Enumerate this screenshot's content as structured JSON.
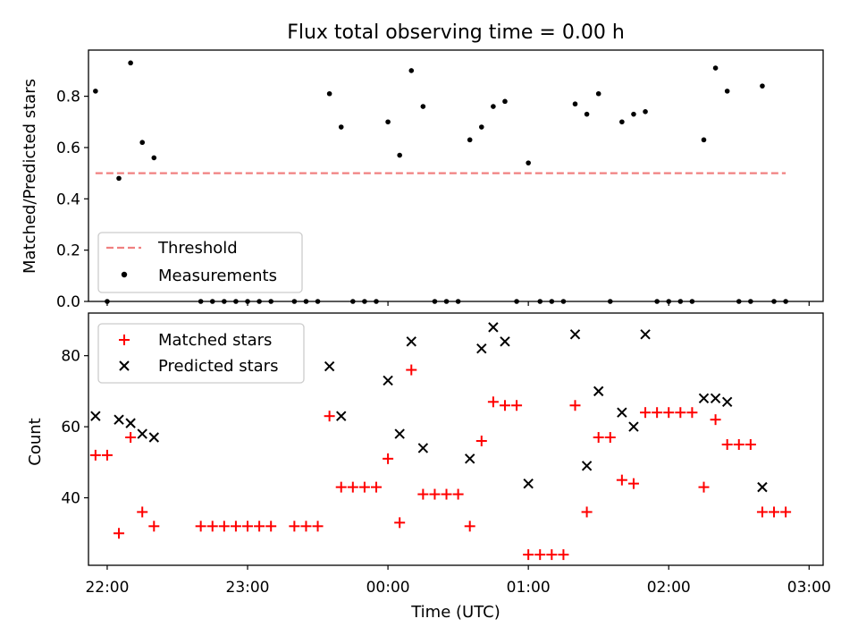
{
  "chart_data": [
    {
      "type": "scatter",
      "title": "Flux total observing time = 0.00 h",
      "xlabel": "",
      "ylabel": "Matched/Predicted stars",
      "xlim": [
        "21:52",
        "03:06"
      ],
      "ylim": [
        0,
        0.98
      ],
      "yticks": [
        "0.0",
        "0.2",
        "0.4",
        "0.6",
        "0.8"
      ],
      "legend_position": "lower-left",
      "threshold": {
        "name": "Threshold",
        "value": 0.5,
        "x_start": "21:55",
        "x_end": "02:50",
        "color": "#f08080",
        "style": "dashed"
      },
      "series": [
        {
          "name": "Measurements",
          "color": "#000000",
          "marker": "dot",
          "points": [
            [
              "21:55",
              0.82
            ],
            [
              "22:00",
              0.0
            ],
            [
              "22:05",
              0.48
            ],
            [
              "22:10",
              0.93
            ],
            [
              "22:15",
              0.62
            ],
            [
              "22:20",
              0.56
            ],
            [
              "22:40",
              0.0
            ],
            [
              "22:45",
              0.0
            ],
            [
              "22:50",
              0.0
            ],
            [
              "22:55",
              0.0
            ],
            [
              "23:00",
              0.0
            ],
            [
              "23:05",
              0.0
            ],
            [
              "23:10",
              0.0
            ],
            [
              "23:20",
              0.0
            ],
            [
              "23:25",
              0.0
            ],
            [
              "23:30",
              0.0
            ],
            [
              "23:35",
              0.81
            ],
            [
              "23:40",
              0.68
            ],
            [
              "23:45",
              0.0
            ],
            [
              "23:50",
              0.0
            ],
            [
              "23:55",
              0.0
            ],
            [
              "00:00",
              0.7
            ],
            [
              "00:05",
              0.57
            ],
            [
              "00:10",
              0.9
            ],
            [
              "00:15",
              0.76
            ],
            [
              "00:20",
              0.0
            ],
            [
              "00:25",
              0.0
            ],
            [
              "00:30",
              0.0
            ],
            [
              "00:35",
              0.63
            ],
            [
              "00:40",
              0.68
            ],
            [
              "00:45",
              0.76
            ],
            [
              "00:50",
              0.78
            ],
            [
              "00:55",
              0.0
            ],
            [
              "01:00",
              0.54
            ],
            [
              "01:05",
              0.0
            ],
            [
              "01:10",
              0.0
            ],
            [
              "01:15",
              0.0
            ],
            [
              "01:20",
              0.77
            ],
            [
              "01:25",
              0.73
            ],
            [
              "01:30",
              0.81
            ],
            [
              "01:35",
              0.0
            ],
            [
              "01:40",
              0.7
            ],
            [
              "01:45",
              0.73
            ],
            [
              "01:50",
              0.74
            ],
            [
              "01:55",
              0.0
            ],
            [
              "02:00",
              0.0
            ],
            [
              "02:05",
              0.0
            ],
            [
              "02:10",
              0.0
            ],
            [
              "02:15",
              0.63
            ],
            [
              "02:20",
              0.91
            ],
            [
              "02:25",
              0.82
            ],
            [
              "02:30",
              0.0
            ],
            [
              "02:35",
              0.0
            ],
            [
              "02:40",
              0.84
            ],
            [
              "02:45",
              0.0
            ],
            [
              "02:50",
              0.0
            ]
          ]
        }
      ]
    },
    {
      "type": "scatter",
      "title": "",
      "xlabel": "Time (UTC)",
      "ylabel": "Count",
      "xlim": [
        "21:52",
        "03:06"
      ],
      "ylim": [
        21,
        92
      ],
      "xticks": [
        "22:00",
        "23:00",
        "00:00",
        "01:00",
        "02:00",
        "03:00"
      ],
      "yticks": [
        "40",
        "60",
        "80"
      ],
      "legend_position": "upper-left",
      "series": [
        {
          "name": "Matched stars",
          "color": "#ff0000",
          "marker": "plus",
          "points": [
            [
              "21:55",
              52
            ],
            [
              "22:00",
              52
            ],
            [
              "22:05",
              30
            ],
            [
              "22:10",
              57
            ],
            [
              "22:15",
              36
            ],
            [
              "22:20",
              32
            ],
            [
              "22:40",
              32
            ],
            [
              "22:45",
              32
            ],
            [
              "22:50",
              32
            ],
            [
              "22:55",
              32
            ],
            [
              "23:00",
              32
            ],
            [
              "23:05",
              32
            ],
            [
              "23:10",
              32
            ],
            [
              "23:20",
              32
            ],
            [
              "23:25",
              32
            ],
            [
              "23:30",
              32
            ],
            [
              "23:35",
              63
            ],
            [
              "23:40",
              43
            ],
            [
              "23:45",
              43
            ],
            [
              "23:50",
              43
            ],
            [
              "23:55",
              43
            ],
            [
              "00:00",
              51
            ],
            [
              "00:05",
              33
            ],
            [
              "00:10",
              76
            ],
            [
              "00:15",
              41
            ],
            [
              "00:20",
              41
            ],
            [
              "00:25",
              41
            ],
            [
              "00:30",
              41
            ],
            [
              "00:35",
              32
            ],
            [
              "00:40",
              56
            ],
            [
              "00:45",
              67
            ],
            [
              "00:50",
              66
            ],
            [
              "00:55",
              66
            ],
            [
              "01:00",
              24
            ],
            [
              "01:05",
              24
            ],
            [
              "01:10",
              24
            ],
            [
              "01:15",
              24
            ],
            [
              "01:20",
              66
            ],
            [
              "01:25",
              36
            ],
            [
              "01:30",
              57
            ],
            [
              "01:35",
              57
            ],
            [
              "01:40",
              45
            ],
            [
              "01:45",
              44
            ],
            [
              "01:50",
              64
            ],
            [
              "01:55",
              64
            ],
            [
              "02:00",
              64
            ],
            [
              "02:05",
              64
            ],
            [
              "02:10",
              64
            ],
            [
              "02:15",
              43
            ],
            [
              "02:20",
              62
            ],
            [
              "02:25",
              55
            ],
            [
              "02:30",
              55
            ],
            [
              "02:35",
              55
            ],
            [
              "02:40",
              36
            ],
            [
              "02:45",
              36
            ],
            [
              "02:50",
              36
            ]
          ]
        },
        {
          "name": "Predicted stars",
          "color": "#000000",
          "marker": "x",
          "points": [
            [
              "21:55",
              63
            ],
            [
              "22:05",
              62
            ],
            [
              "22:10",
              61
            ],
            [
              "22:15",
              58
            ],
            [
              "22:20",
              57
            ],
            [
              "23:35",
              77
            ],
            [
              "23:40",
              63
            ],
            [
              "00:00",
              73
            ],
            [
              "00:05",
              58
            ],
            [
              "00:10",
              84
            ],
            [
              "00:15",
              54
            ],
            [
              "00:35",
              51
            ],
            [
              "00:40",
              82
            ],
            [
              "00:45",
              88
            ],
            [
              "00:50",
              84
            ],
            [
              "01:00",
              44
            ],
            [
              "01:20",
              86
            ],
            [
              "01:25",
              49
            ],
            [
              "01:30",
              70
            ],
            [
              "01:40",
              64
            ],
            [
              "01:45",
              60
            ],
            [
              "01:50",
              86
            ],
            [
              "02:15",
              68
            ],
            [
              "02:20",
              68
            ],
            [
              "02:25",
              67
            ],
            [
              "02:40",
              43
            ]
          ]
        }
      ]
    }
  ]
}
